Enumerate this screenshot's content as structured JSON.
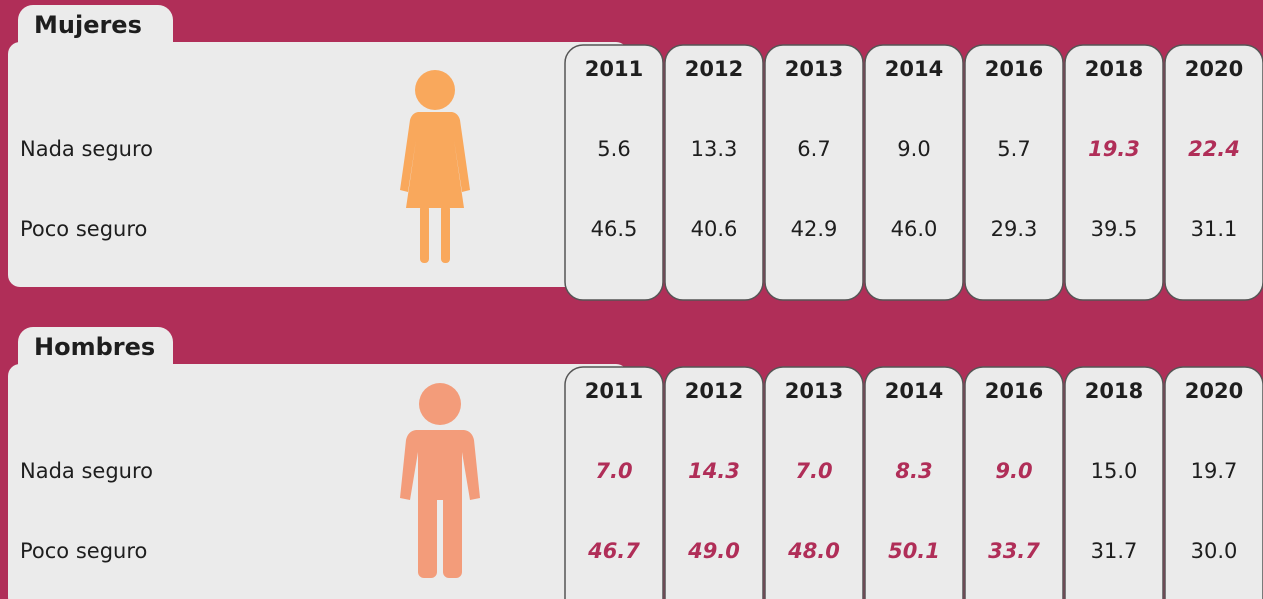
{
  "panels": [
    {
      "title": "Mujeres",
      "years": [
        "2011",
        "2012",
        "2013",
        "2014",
        "2016",
        "2018",
        "2020"
      ],
      "rows": [
        {
          "label": "Nada seguro",
          "values": [
            "5.6",
            "13.3",
            "6.7",
            "9.0",
            "5.7",
            "19.3",
            "22.4"
          ],
          "highlighted": [
            false,
            false,
            false,
            false,
            false,
            true,
            true
          ]
        },
        {
          "label": "Poco seguro",
          "values": [
            "46.5",
            "40.6",
            "42.9",
            "46.0",
            "29.3",
            "39.5",
            "31.1"
          ],
          "highlighted": [
            false,
            false,
            false,
            false,
            false,
            false,
            false
          ]
        }
      ]
    },
    {
      "title": "Hombres",
      "years": [
        "2011",
        "2012",
        "2013",
        "2014",
        "2016",
        "2018",
        "2020"
      ],
      "rows": [
        {
          "label": "Nada seguro",
          "values": [
            "7.0",
            "14.3",
            "7.0",
            "8.3",
            "9.0",
            "15.0",
            "19.7"
          ],
          "highlighted": [
            true,
            true,
            true,
            true,
            true,
            false,
            false
          ]
        },
        {
          "label": "Poco seguro",
          "values": [
            "46.7",
            "49.0",
            "48.0",
            "50.1",
            "33.7",
            "31.7",
            "30.0"
          ],
          "highlighted": [
            true,
            true,
            true,
            true,
            true,
            false,
            false
          ]
        }
      ]
    }
  ]
}
